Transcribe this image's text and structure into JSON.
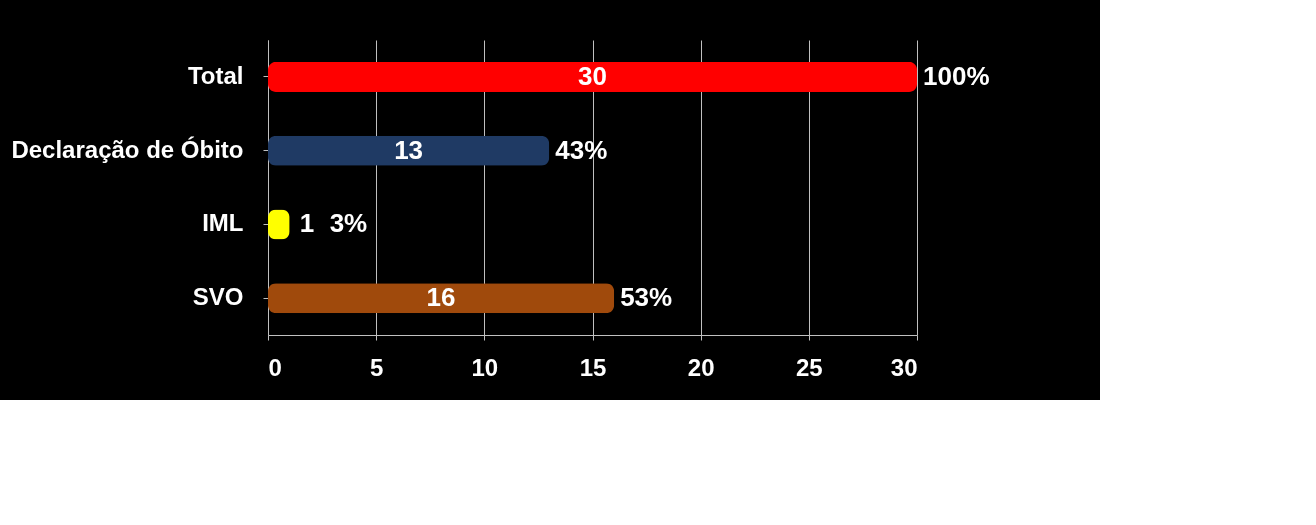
{
  "chart_data": {
    "type": "bar",
    "orientation": "horizontal",
    "categories": [
      "Total",
      "Declaração de Óbito",
      "IML",
      "SVO"
    ],
    "values": [
      30,
      13,
      1,
      16
    ],
    "colors": [
      "#ff0000",
      "#1f3a64",
      "#ffff00",
      "#a04a0c"
    ],
    "xlim": [
      0,
      30
    ],
    "xticks": [
      0,
      5,
      10,
      15,
      20,
      25,
      30
    ],
    "grid": "x",
    "data_labels": true,
    "annotations": [
      {
        "text": "100%",
        "x": 30,
        "y": "Total"
      },
      {
        "text": "43%",
        "x": 13,
        "y": "Declaração de Óbito"
      },
      {
        "text": "3%",
        "x": 1,
        "y": "IML"
      },
      {
        "text": "53%",
        "x": 16,
        "y": "SVO"
      }
    ]
  }
}
